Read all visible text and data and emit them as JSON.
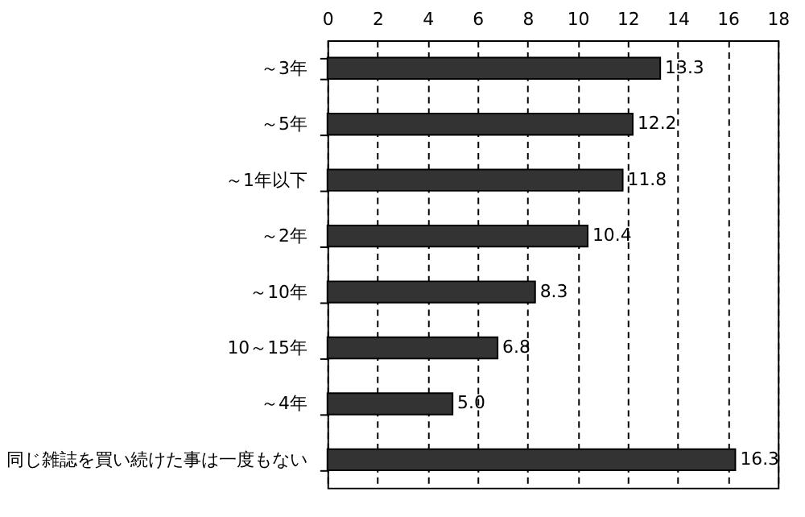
{
  "chart_data": {
    "type": "bar",
    "orientation": "horizontal",
    "categories": [
      "～3年",
      "～5年",
      "～1年以下",
      "～2年",
      "～10年",
      "10～15年",
      "～4年",
      "同じ雑誌を買い続けた事は一度もない"
    ],
    "values": [
      13.3,
      12.2,
      11.8,
      10.4,
      8.3,
      6.8,
      5.0,
      16.3
    ],
    "value_labels": [
      "13.3",
      "12.2",
      "11.8",
      "10.4",
      "8.3",
      "6.8",
      "5.0",
      "16.3"
    ],
    "color": "#333333",
    "xlim": [
      0,
      18
    ],
    "xticks": [
      0,
      2,
      4,
      6,
      8,
      10,
      12,
      14,
      16,
      18
    ],
    "grid": "x"
  }
}
